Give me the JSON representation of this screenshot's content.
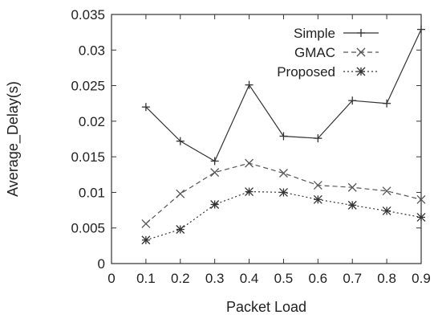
{
  "chart_data": {
    "type": "line",
    "title": "",
    "xlabel": "Packet Load",
    "ylabel": "Average_Delay(s)",
    "xlim": [
      0,
      0.9
    ],
    "ylim": [
      0,
      0.035
    ],
    "x_ticks": [
      0,
      0.1,
      0.2,
      0.3,
      0.4,
      0.5,
      0.6,
      0.7,
      0.8,
      0.9
    ],
    "x_tick_labels": [
      "0",
      "0.1",
      "0.2",
      "0.3",
      "0.4",
      "0.5",
      "0.6",
      "0.7",
      "0.8",
      "0.9"
    ],
    "y_ticks": [
      0,
      0.005,
      0.01,
      0.015,
      0.02,
      0.025,
      0.03,
      0.035
    ],
    "y_tick_labels": [
      "0",
      "0.005",
      "0.01",
      "0.015",
      "0.02",
      "0.025",
      "0.03",
      "0.035"
    ],
    "grid": false,
    "legend_position": "top-right",
    "x": [
      0.1,
      0.2,
      0.3,
      0.4,
      0.5,
      0.6,
      0.7,
      0.8,
      0.9
    ],
    "series": [
      {
        "name": "Simple",
        "values": [
          0.022,
          0.0172,
          0.0144,
          0.0251,
          0.0179,
          0.0176,
          0.0229,
          0.0225,
          0.0329
        ],
        "line_style": "solid",
        "marker": "plus",
        "color": "#333333"
      },
      {
        "name": "GMAC",
        "values": [
          0.0056,
          0.0098,
          0.0128,
          0.0141,
          0.0127,
          0.011,
          0.0107,
          0.0102,
          0.009
        ],
        "line_style": "dashed",
        "marker": "x",
        "color": "#555555"
      },
      {
        "name": "Proposed",
        "values": [
          0.0033,
          0.0048,
          0.0083,
          0.0101,
          0.01,
          0.009,
          0.0082,
          0.0074,
          0.0065
        ],
        "line_style": "dotted",
        "marker": "asterisk",
        "color": "#333333"
      }
    ]
  }
}
